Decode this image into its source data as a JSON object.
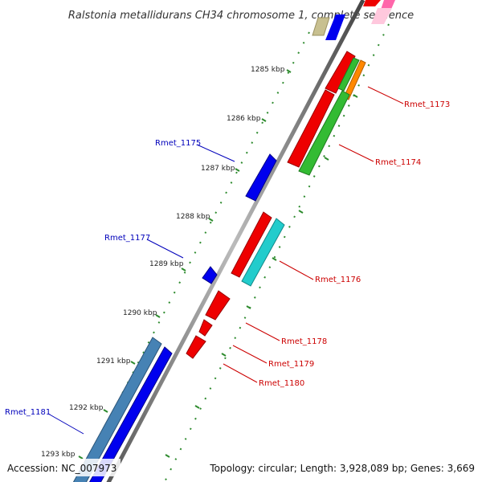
{
  "title": "Ralstonia metallidurans CH34 chromosome 1, complete sequence",
  "footer": {
    "accession": "Accession: NC_007973",
    "summary": "Topology: circular; Length: 3,928,089 bp; Genes: 3,669"
  },
  "ticks": [
    "1285 kbp",
    "1286 kbp",
    "1287 kbp",
    "1288 kbp",
    "1289 kbp",
    "1290 kbp",
    "1291 kbp",
    "1292 kbp",
    "1293 kbp"
  ],
  "genes": [
    {
      "label": "Rmet_1173",
      "color": "#cc0000"
    },
    {
      "label": "Rmet_1174",
      "color": "#cc0000"
    },
    {
      "label": "Rmet_1175",
      "color": "#0000bb"
    },
    {
      "label": "Rmet_1176",
      "color": "#cc0000"
    },
    {
      "label": "Rmet_1177",
      "color": "#0000bb"
    },
    {
      "label": "Rmet_1178",
      "color": "#cc0000"
    },
    {
      "label": "Rmet_1179",
      "color": "#cc0000"
    },
    {
      "label": "Rmet_1180",
      "color": "#cc0000"
    },
    {
      "label": "Rmet_1181",
      "color": "#0000bb"
    }
  ],
  "colors": {
    "backbone": "#888888",
    "tick_dots": "#2e8b2e",
    "red": "#ee0000",
    "green": "#33bb33",
    "blue": "#0000ee",
    "cyan": "#22cccc",
    "orange": "#ff8800",
    "steelblue": "#4682b4",
    "pink": "#ff66aa",
    "olive": "#c8c090"
  }
}
